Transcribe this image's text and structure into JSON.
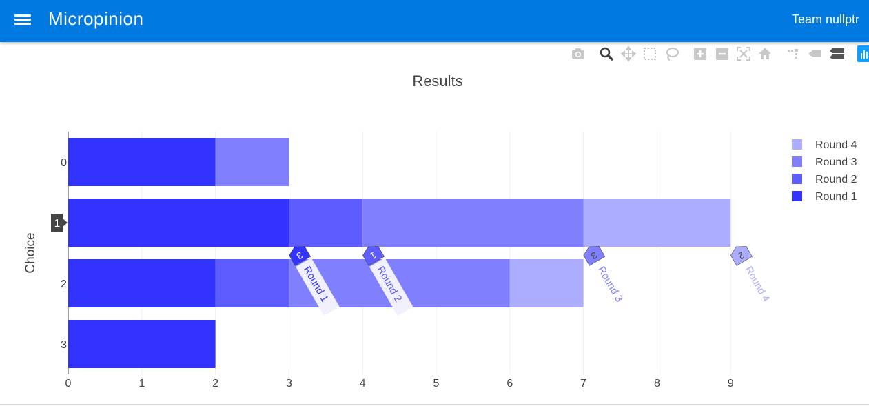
{
  "app": {
    "title": "Micropinion",
    "team": "Team nullptr"
  },
  "colors": {
    "appbar": "#0079e0",
    "round1": "#3333ff",
    "round2": "#5c5cff",
    "round3": "#8080ff",
    "round4": "#adadff",
    "hover_label": "#444444"
  },
  "modebar": {
    "icons": [
      "camera-icon",
      "zoom-icon",
      "pan-icon",
      "box-select-icon",
      "lasso-select-icon",
      "zoom-in-icon",
      "zoom-out-icon",
      "autoscale-icon",
      "reset-axes-icon",
      "spike-lines-icon",
      "hover-closest-icon",
      "hover-compare-icon",
      "plotly-logo-icon"
    ]
  },
  "chart_data": {
    "type": "bar",
    "orientation": "horizontal",
    "barmode": "stack",
    "title": "Results",
    "xlabel": "",
    "ylabel": "Choice",
    "categories": [
      "0",
      "1",
      "2",
      "3"
    ],
    "xlim": [
      0,
      9.4
    ],
    "xticks": [
      0,
      1,
      2,
      3,
      4,
      5,
      6,
      7,
      8,
      9
    ],
    "grid": true,
    "legend_position": "top-right",
    "series": [
      {
        "name": "Round 1",
        "values": [
          2,
          3,
          2,
          2
        ]
      },
      {
        "name": "Round 2",
        "values": [
          0,
          1,
          1,
          0
        ]
      },
      {
        "name": "Round 3",
        "values": [
          1,
          3,
          3,
          0
        ]
      },
      {
        "name": "Round 4",
        "values": [
          0,
          2,
          1,
          0
        ]
      }
    ],
    "annotations": [
      {
        "x": 3,
        "category": "1",
        "count": "3",
        "text": "Round 1"
      },
      {
        "x": 4,
        "category": "1",
        "count": "1",
        "text": "Round 2"
      },
      {
        "x": 7,
        "category": "1",
        "count": "3",
        "text": "Round 3"
      },
      {
        "x": 9,
        "category": "1",
        "count": "2",
        "text": "Round 4"
      }
    ],
    "hover": {
      "category": "1",
      "label": "1"
    }
  }
}
